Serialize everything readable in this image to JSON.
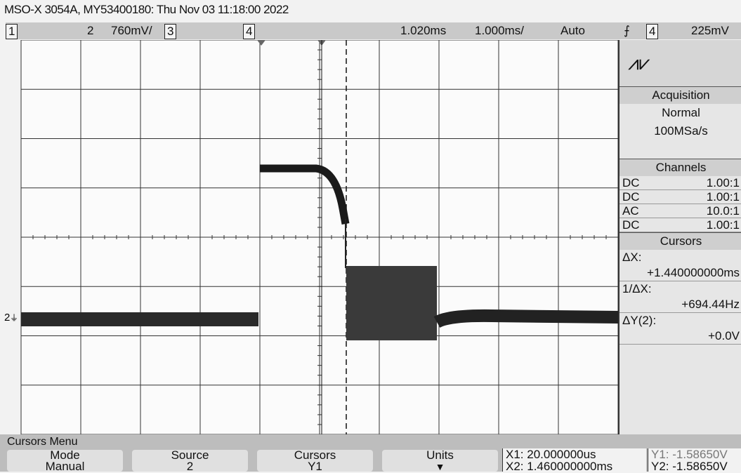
{
  "header": {
    "title": "MSO-X 3054A, MY53400180: Thu Nov 03 11:18:00 2022"
  },
  "status_bar": {
    "channels": [
      "1",
      "2",
      "3",
      "4"
    ],
    "ch2_scale": "760mV/",
    "delay": "1.020ms",
    "timebase": "1.000ms/",
    "trigger_mode": "Auto",
    "trigger_channel": "4",
    "trigger_level": "225mV"
  },
  "screen": {
    "channel_marker": "2"
  },
  "side_panel": {
    "acquisition": {
      "title": "Acquisition",
      "mode": "Normal",
      "sample_rate": "100MSa/s"
    },
    "channels": {
      "title": "Channels",
      "rows": [
        [
          "DC",
          "1.00:1"
        ],
        [
          "DC",
          "1.00:1"
        ],
        [
          "AC",
          "10.0:1"
        ],
        [
          "DC",
          "1.00:1"
        ]
      ]
    },
    "cursors": {
      "title": "Cursors",
      "items": [
        {
          "label": "ΔX:",
          "value": "+1.440000000ms"
        },
        {
          "label": "1/ΔX:",
          "value": "+694.44Hz"
        },
        {
          "label": "ΔY(2):",
          "value": "+0.0V"
        }
      ]
    }
  },
  "menu": {
    "title": "Cursors Menu",
    "softkeys": [
      {
        "label": "Mode",
        "value": "Manual"
      },
      {
        "label": "Source",
        "value": "2"
      },
      {
        "label": "Cursors",
        "value": "Y1"
      },
      {
        "label": "Units"
      }
    ],
    "readouts": {
      "x1": "X1: 20.000000us",
      "x2": "X2: 1.460000000ms",
      "y1": "Y1: -1.58650V",
      "y2": "Y2: -1.58650V"
    }
  }
}
